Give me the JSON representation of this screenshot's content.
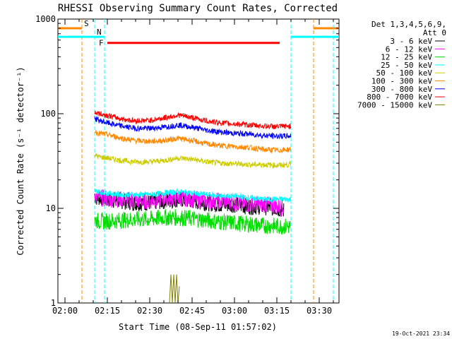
{
  "chart_data": {
    "type": "line",
    "title": "RHESSI Observing Summary Count Rates, Corrected",
    "xlabel": "Start Time (08-Sep-11 01:57:02)",
    "ylabel": "Corrected Count Rate (s⁻¹ detector⁻¹)",
    "yscale": "log",
    "ylim": [
      1,
      1000
    ],
    "xlim_minutes": [
      -2.5,
      97
    ],
    "x_tick_minutes": [
      0,
      15,
      30,
      45,
      60,
      75,
      90
    ],
    "x_tick_labels": [
      "02:00",
      "02:15",
      "02:30",
      "02:45",
      "03:00",
      "03:15",
      "03:30"
    ],
    "y_tick_values": [
      1,
      10,
      100,
      1000
    ],
    "y_tick_labels": [
      "1",
      "10",
      "100",
      "1000"
    ],
    "grid": false,
    "legend_position": "right",
    "legend_header": [
      "Det 1,3,4,5,6,9,",
      "Att 0"
    ],
    "series": [
      {
        "name": "3 - 6 keV",
        "color": "#000000",
        "x": [
          10.5,
          11,
          12,
          15,
          20,
          25,
          30,
          35,
          40,
          45,
          50,
          55,
          60,
          65,
          70,
          75,
          77.5
        ],
        "values": [
          14,
          13,
          13,
          12.5,
          12,
          11.5,
          11.5,
          12,
          12.5,
          12,
          11.5,
          11,
          11,
          10.5,
          10.5,
          10,
          9.5
        ]
      },
      {
        "name": "6 - 12 keV",
        "color": "#ff00ff",
        "x": [
          10.5,
          11,
          12,
          15,
          20,
          25,
          30,
          35,
          40,
          45,
          50,
          55,
          60,
          65,
          70,
          75,
          77.5
        ],
        "values": [
          14,
          13.5,
          13,
          12.5,
          12.5,
          12,
          12,
          12.5,
          13,
          12.5,
          12,
          12,
          11.5,
          11,
          11,
          10.5,
          10
        ]
      },
      {
        "name": "12 - 25 keV",
        "color": "#00dd00",
        "x": [
          10.5,
          11,
          12,
          15,
          20,
          25,
          30,
          35,
          40,
          45,
          50,
          55,
          60,
          65,
          70,
          75,
          80
        ],
        "values": [
          7.5,
          7.5,
          7.3,
          7.3,
          7.5,
          7.6,
          7.7,
          8,
          8,
          7.8,
          7.5,
          7.2,
          7,
          6.8,
          6.6,
          6.5,
          6.4
        ]
      },
      {
        "name": "25 - 50 keV",
        "color": "#00ffff",
        "x": [
          10.5,
          11,
          12,
          15,
          20,
          25,
          30,
          35,
          40,
          45,
          50,
          55,
          60,
          65,
          70,
          75,
          80
        ],
        "values": [
          15.5,
          15,
          15,
          14.5,
          14,
          14,
          14,
          14.5,
          15,
          14.5,
          14,
          13.5,
          13.5,
          13,
          12.5,
          12.5,
          12.5
        ]
      },
      {
        "name": "50 - 100 keV",
        "color": "#cccc00",
        "x": [
          10.5,
          11,
          12,
          15,
          20,
          25,
          30,
          35,
          40,
          45,
          50,
          55,
          60,
          65,
          70,
          75,
          80
        ],
        "values": [
          37,
          36,
          35,
          34,
          32,
          31,
          31,
          32,
          34,
          33,
          31,
          30,
          29.5,
          29,
          29,
          28.5,
          29
        ]
      },
      {
        "name": "100 - 300 keV",
        "color": "#ff8800",
        "x": [
          10.5,
          11,
          12,
          15,
          20,
          25,
          30,
          35,
          40,
          45,
          50,
          55,
          60,
          65,
          70,
          75,
          80
        ],
        "values": [
          66,
          64,
          62,
          60,
          55,
          52,
          51,
          52,
          55,
          52,
          48,
          46,
          45,
          44,
          42,
          41,
          42
        ]
      },
      {
        "name": "300 - 800 keV",
        "color": "#0000ff",
        "x": [
          10.5,
          11,
          12,
          15,
          20,
          25,
          30,
          35,
          40,
          45,
          50,
          55,
          60,
          65,
          70,
          75,
          80
        ],
        "values": [
          90,
          88,
          85,
          80,
          74,
          70,
          70,
          72,
          76,
          72,
          67,
          64,
          62,
          61,
          59,
          58,
          58
        ]
      },
      {
        "name": "800 - 7000 keV",
        "color": "#ff0000",
        "x": [
          10.5,
          11,
          12,
          15,
          20,
          25,
          30,
          35,
          40,
          45,
          50,
          55,
          60,
          65,
          70,
          75,
          80
        ],
        "values": [
          105,
          102,
          100,
          96,
          88,
          84,
          85,
          90,
          97,
          91,
          84,
          80,
          78,
          76,
          74,
          73,
          74
        ]
      },
      {
        "name": "7000 - 15000 keV",
        "color": "#808000",
        "x": [
          37,
          37.5,
          38,
          38.5,
          39,
          39.5,
          40,
          40.5
        ],
        "values": [
          1,
          2,
          1,
          2,
          1,
          2,
          1,
          1.5
        ]
      }
    ],
    "annotations": [
      {
        "label": "S",
        "color": "#ff8800"
      },
      {
        "label": "N",
        "color": "#00ffff"
      },
      {
        "label": "F",
        "color": "#ff0000"
      }
    ],
    "flag_bars": [
      {
        "label": "S",
        "color": "#ff8800",
        "y": 800,
        "ranges_minutes": [
          [
            -2.5,
            6
          ],
          [
            88,
            97
          ]
        ],
        "markers_minutes": [
          6,
          88
        ]
      },
      {
        "label": "N",
        "color": "#00ffff",
        "y": 650,
        "ranges_minutes": [
          [
            -2.5,
            14
          ],
          [
            80,
            97
          ]
        ],
        "markers_minutes": [
          10.5,
          14,
          80,
          95
        ]
      },
      {
        "label": "F",
        "color": "#ff0000",
        "y": 560,
        "ranges_minutes": [
          [
            15,
            76
          ]
        ],
        "markers_minutes": []
      }
    ],
    "footer_timestamp": "19-Oct-2021 23:34"
  }
}
